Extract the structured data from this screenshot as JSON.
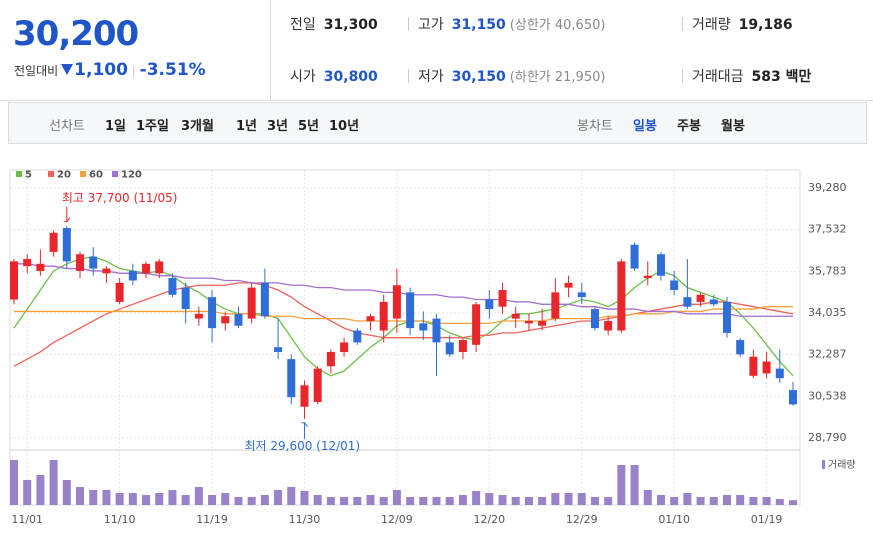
{
  "header": {
    "price": "30,200",
    "change_label": "전일대비",
    "change": "1,100",
    "change_pct": "-3.51%",
    "quotes": [
      [
        {
          "label": "전일",
          "value": "31,300"
        },
        {
          "label": "고가",
          "value": "31,150",
          "extra": "(상한가 40,650)"
        },
        {
          "label": "거래량",
          "value": "19,186"
        }
      ],
      [
        {
          "label": "시가",
          "value": "30,800"
        },
        {
          "label": "저가",
          "value": "30,150",
          "extra": "(하한가 21,950)"
        },
        {
          "label": "거래대금",
          "value": "583 백만"
        }
      ]
    ]
  },
  "toolbar": {
    "line_label": "선차트",
    "periods": [
      "1일",
      "1주일",
      "3개월",
      "1년",
      "3년",
      "5년",
      "10년"
    ],
    "candle_label": "봉차트",
    "candle_periods": [
      "일봉",
      "주봉",
      "월봉"
    ],
    "selected": 0
  },
  "chart_data": {
    "type": "candlestick",
    "categories": [
      null,
      "11/01",
      null,
      null,
      null,
      null,
      null,
      null,
      "11/10",
      null,
      null,
      null,
      null,
      null,
      null,
      "11/19",
      null,
      null,
      null,
      null,
      null,
      null,
      "11/30",
      null,
      null,
      null,
      null,
      null,
      null,
      "12/09",
      null,
      null,
      null,
      null,
      null,
      null,
      "12/20",
      null,
      null,
      null,
      null,
      null,
      null,
      "12/29",
      null,
      null,
      null,
      null,
      null,
      null,
      "01/10",
      null,
      null,
      null,
      null,
      null,
      null,
      "01/19",
      null,
      null
    ],
    "open": [
      34600,
      36000,
      35800,
      36600,
      37600,
      35800,
      36400,
      35700,
      34500,
      35800,
      35700,
      35700,
      35500,
      35100,
      33800,
      34700,
      33600,
      34000,
      33800,
      35300,
      32600,
      32100,
      30100,
      30300,
      31800,
      32400,
      33300,
      33700,
      33300,
      33800,
      34900,
      33600,
      33800,
      32800,
      32400,
      32700,
      34600,
      34300,
      33800,
      33600,
      33500,
      33800,
      35100,
      34900,
      34200,
      33300,
      33300,
      36900,
      35500,
      36500,
      35400,
      34700,
      34500,
      34600,
      34500,
      32900,
      31400,
      31500,
      31700,
      30800
    ],
    "high": [
      36300,
      36500,
      36700,
      37500,
      37700,
      36600,
      36800,
      36000,
      35500,
      36100,
      36200,
      36300,
      35700,
      35300,
      34300,
      35000,
      34100,
      34300,
      35300,
      35900,
      33800,
      32300,
      31200,
      31800,
      32500,
      33000,
      33400,
      34000,
      34800,
      35900,
      35100,
      34100,
      34000,
      33100,
      33000,
      34500,
      35000,
      35300,
      34300,
      34000,
      34200,
      35500,
      35600,
      35300,
      34300,
      33900,
      36300,
      37000,
      36200,
      36600,
      35800,
      36300,
      34900,
      34800,
      34700,
      33000,
      32500,
      32400,
      32500,
      31150
    ],
    "low": [
      34400,
      35700,
      35600,
      36400,
      35900,
      35500,
      35600,
      35300,
      34400,
      35200,
      35500,
      35500,
      34700,
      33600,
      33500,
      32800,
      33300,
      33400,
      33600,
      33800,
      32100,
      30200,
      29600,
      30200,
      31500,
      32200,
      32700,
      33300,
      32800,
      33200,
      33100,
      32900,
      31400,
      32200,
      32100,
      32400,
      33800,
      34000,
      33400,
      33300,
      33300,
      33700,
      34700,
      34400,
      33300,
      33100,
      33200,
      35800,
      35200,
      35400,
      34800,
      34200,
      34300,
      34300,
      33000,
      32200,
      31300,
      31300,
      31100,
      30150
    ],
    "close": [
      36200,
      36300,
      36100,
      37400,
      36200,
      36500,
      35900,
      35900,
      35300,
      35400,
      36100,
      36200,
      34800,
      34200,
      34000,
      33400,
      33900,
      33500,
      35100,
      33900,
      32400,
      30500,
      31000,
      31700,
      32400,
      32800,
      32800,
      33900,
      34500,
      35200,
      33400,
      33300,
      32800,
      32300,
      32900,
      34400,
      34200,
      35000,
      34000,
      33700,
      33700,
      34900,
      35300,
      34700,
      33400,
      33700,
      36200,
      35900,
      35600,
      35600,
      35000,
      34300,
      34800,
      34400,
      33200,
      32300,
      32200,
      32000,
      31300,
      30200
    ],
    "volume": [
      180000,
      100000,
      120000,
      180000,
      100000,
      72000,
      60000,
      60000,
      48000,
      48000,
      40000,
      48000,
      60000,
      40000,
      72000,
      40000,
      48000,
      32000,
      32000,
      40000,
      60000,
      72000,
      56000,
      40000,
      32000,
      32000,
      32000,
      40000,
      32000,
      60000,
      32000,
      32000,
      32000,
      32000,
      40000,
      56000,
      48000,
      40000,
      32000,
      32000,
      32000,
      48000,
      48000,
      48000,
      32000,
      32000,
      160000,
      160000,
      60000,
      40000,
      32000,
      48000,
      32000,
      32000,
      40000,
      40000,
      32000,
      32000,
      24000,
      19186
    ],
    "volume_ylim": [
      0,
      200000
    ],
    "volume_label": "거래량",
    "volume_color": "#9a82c8",
    "up_color": "#e8262b",
    "down_color": "#2f6ed8",
    "series": [
      {
        "name": "5",
        "color": "#6cc04a",
        "values": [
          33400,
          34200,
          35000,
          35800,
          36100,
          36300,
          36400,
          36200,
          35900,
          35800,
          35700,
          35800,
          35600,
          35200,
          34900,
          34500,
          34200,
          34000,
          34000,
          34000,
          33800,
          33000,
          32200,
          31700,
          31400,
          31600,
          32100,
          32600,
          33000,
          33500,
          33700,
          33700,
          33500,
          33200,
          33000,
          32900,
          33200,
          33700,
          34000,
          34000,
          34100,
          34200,
          34400,
          34600,
          34500,
          34300,
          34600,
          35100,
          35500,
          35800,
          35600,
          35100,
          34900,
          34700,
          34500,
          34000,
          33400,
          32700,
          32000,
          31400
        ]
      },
      {
        "name": "20",
        "color": "#f0625a",
        "values": [
          31800,
          32100,
          32400,
          32800,
          33100,
          33400,
          33700,
          34000,
          34200,
          34400,
          34600,
          34800,
          35000,
          35100,
          35200,
          35200,
          35200,
          35300,
          35300,
          35200,
          35000,
          34700,
          34300,
          34000,
          33700,
          33400,
          33200,
          33100,
          33000,
          33000,
          33000,
          33000,
          33000,
          33000,
          33000,
          33100,
          33100,
          33200,
          33200,
          33300,
          33400,
          33500,
          33600,
          33700,
          33700,
          33800,
          33900,
          34000,
          34100,
          34200,
          34300,
          34400,
          34400,
          34500,
          34500,
          34400,
          34300,
          34200,
          34100,
          34000
        ]
      },
      {
        "name": "60",
        "color": "#f7a13a",
        "values": [
          34100,
          34100,
          34100,
          34100,
          34100,
          34100,
          34100,
          34100,
          34100,
          34100,
          34100,
          34100,
          34100,
          34100,
          34100,
          34100,
          34000,
          34000,
          34000,
          33900,
          33900,
          33900,
          33800,
          33800,
          33800,
          33800,
          33700,
          33700,
          33700,
          33700,
          33700,
          33700,
          33600,
          33600,
          33600,
          33600,
          33600,
          33700,
          33700,
          33700,
          33700,
          33800,
          33800,
          33800,
          33800,
          33900,
          33900,
          34000,
          34000,
          34000,
          34100,
          34100,
          34100,
          34200,
          34200,
          34200,
          34200,
          34300,
          34300,
          34300
        ]
      },
      {
        "name": "120",
        "color": "#a46fd0",
        "values": [
          36100,
          36100,
          36000,
          36000,
          35900,
          35900,
          35800,
          35800,
          35700,
          35700,
          35700,
          35600,
          35600,
          35500,
          35500,
          35500,
          35400,
          35400,
          35300,
          35300,
          35300,
          35200,
          35200,
          35100,
          35100,
          35000,
          35000,
          35000,
          34900,
          34900,
          34800,
          34800,
          34800,
          34700,
          34700,
          34600,
          34600,
          34600,
          34500,
          34500,
          34400,
          34400,
          34400,
          34300,
          34300,
          34200,
          34200,
          34200,
          34100,
          34100,
          34100,
          34000,
          34000,
          34000,
          34000,
          33900,
          33900,
          33900,
          33900,
          33900
        ]
      }
    ],
    "annotations": [
      {
        "text": "최고 37,700 (11/05)",
        "kind": "high",
        "color": "#e8262b"
      },
      {
        "text": "최저 29,600 (12/01)",
        "kind": "low",
        "color": "#2f6ed8"
      }
    ],
    "ylim": [
      28370,
      39700
    ],
    "yticks": [
      {
        "value": 39280,
        "label": "39,280"
      },
      {
        "value": 37532,
        "label": "37,532"
      },
      {
        "value": 35783,
        "label": "35,783"
      },
      {
        "value": 34035,
        "label": "34,035"
      },
      {
        "value": 32287,
        "label": "32,287"
      },
      {
        "value": 30538,
        "label": "30,538"
      },
      {
        "value": 28790,
        "label": "28,790"
      }
    ],
    "grid": true
  }
}
